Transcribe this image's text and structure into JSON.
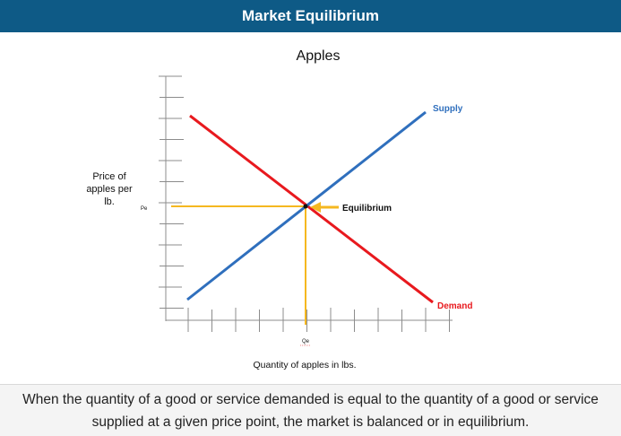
{
  "header": {
    "title": "Market Equilibrium"
  },
  "diagram": {
    "title": "Apples",
    "y_label_lines": [
      "Price of",
      "apples per",
      "lb."
    ],
    "x_label": "Quantity of apples in lbs.",
    "pe_label": "Pe",
    "qe_label": "Qe",
    "supply_label": "Supply",
    "demand_label": "Demand",
    "equilibrium_label": "Equilibrium",
    "colors": {
      "supply": "#2f6fbd",
      "demand": "#e8191e",
      "equilibrium_lines": "#f5b820",
      "axis": "#8c8c8c"
    }
  },
  "footer": {
    "caption": "When the quantity of a good or service demanded is equal to the quantity of a good or service supplied at a given price point, the market is balanced or in equilibrium."
  }
}
